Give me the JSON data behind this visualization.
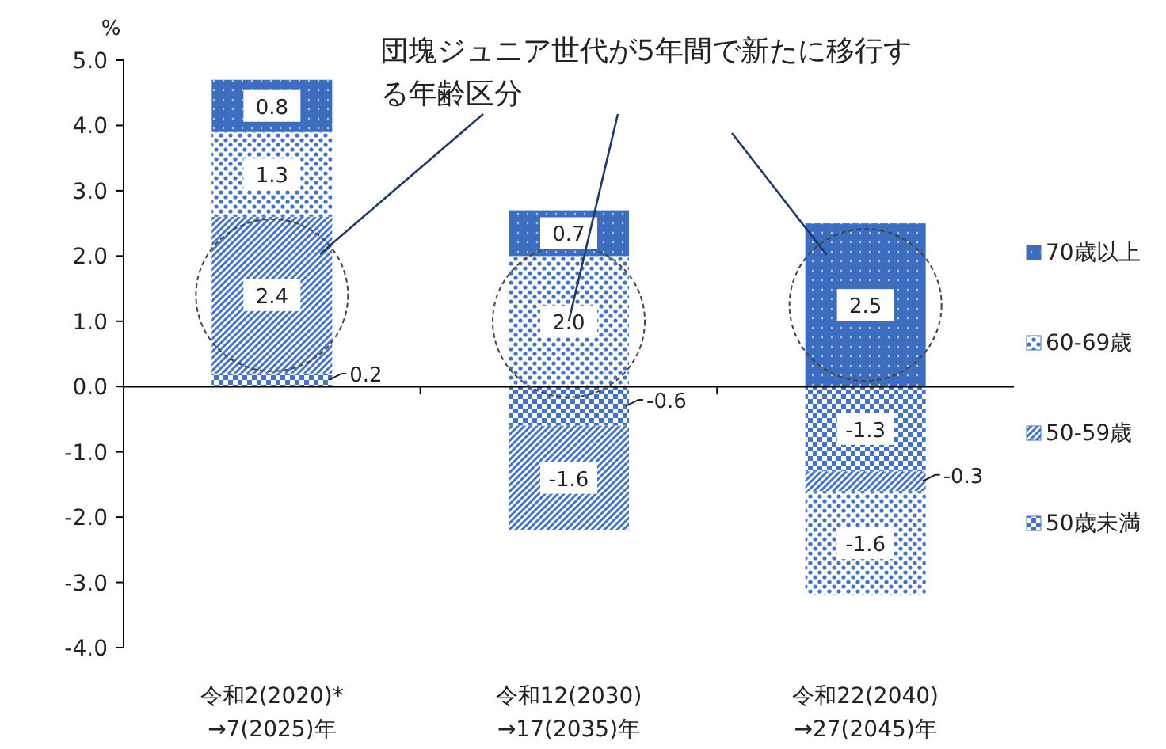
{
  "chart_data": {
    "type": "bar",
    "stacked": true,
    "ylabel": "%",
    "categories": [
      "令和2(2020)*\n→7(2025)年",
      "令和12(2030)\n→17(2035)年",
      "令和22(2040)\n→27(2045)年"
    ],
    "series": [
      {
        "name": "50歳未満",
        "color": "#4472c4",
        "values": [
          0.2,
          -0.6,
          -1.3
        ],
        "value_labels": [
          "0.2",
          "-0.6",
          "-1.3"
        ]
      },
      {
        "name": "50-59歳",
        "color": "#4472c4",
        "values": [
          2.4,
          -1.6,
          -0.3
        ],
        "value_labels": [
          "2.4",
          "-1.6",
          "-0.3"
        ]
      },
      {
        "name": "60-69歳",
        "color": "#4472c4",
        "values": [
          1.3,
          2.0,
          -1.6
        ],
        "value_labels": [
          "1.3",
          "2.0",
          "-1.6"
        ]
      },
      {
        "name": "70歳以上",
        "color": "#3d6dbf",
        "values": [
          0.8,
          0.7,
          2.5
        ],
        "value_labels": [
          "0.8",
          "0.7",
          "2.5"
        ]
      }
    ],
    "ylim": [
      -4.0,
      5.0
    ],
    "yticks": [
      {
        "value": -4,
        "label": "-4.0"
      },
      {
        "value": -3,
        "label": "-3.0"
      },
      {
        "value": -2,
        "label": "-2.0"
      },
      {
        "value": -1,
        "label": "-1.0"
      },
      {
        "value": 0,
        "label": "0.0"
      },
      {
        "value": 1,
        "label": "1.0"
      },
      {
        "value": 2,
        "label": "2.0"
      },
      {
        "value": 3,
        "label": "3.0"
      },
      {
        "value": 4,
        "label": "4.0"
      },
      {
        "value": 5,
        "label": "5.0"
      }
    ],
    "legend": "right",
    "annotations": [
      {
        "text": "団塊ジュニア世代が5年間で新たに移行する年齢区分",
        "x": "令和12(2030)\n→17(2035)年",
        "y": 1.0
      }
    ]
  }
}
